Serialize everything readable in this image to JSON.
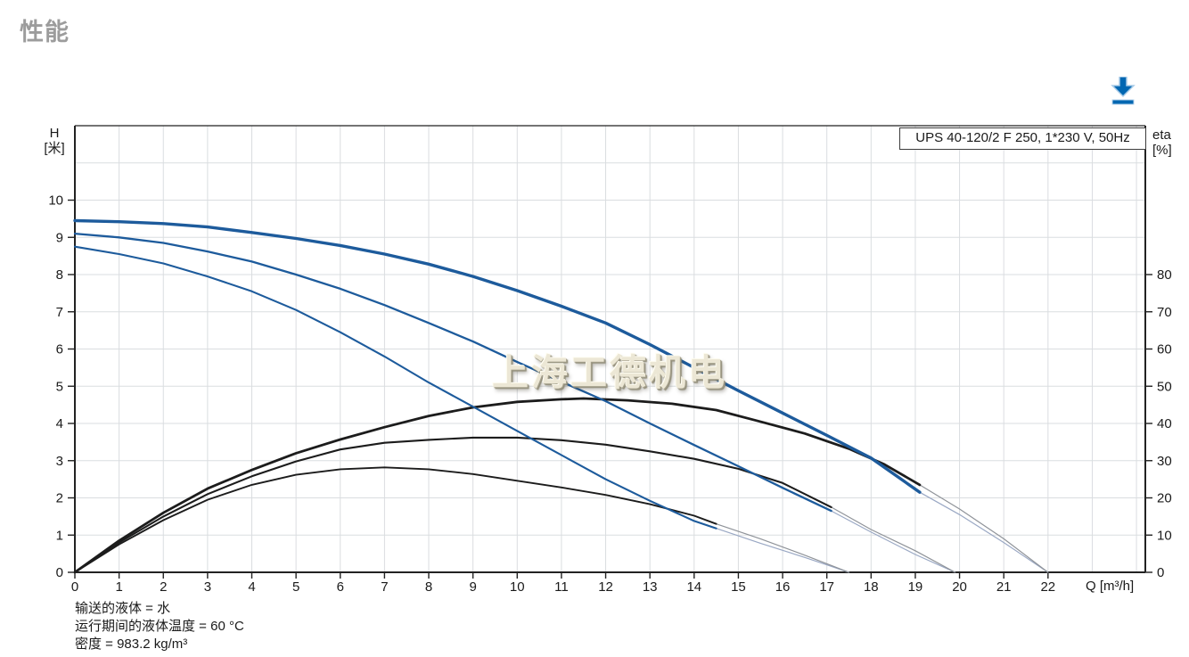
{
  "page": {
    "title": "性能",
    "accent_color": "#0067b2"
  },
  "chart": {
    "legend": "UPS 40-120/2 F 250, 1*230 V, 50Hz",
    "left_axis": {
      "line1": "H",
      "line2": "[米]"
    },
    "right_axis": {
      "line1": "eta",
      "line2": "[%]"
    },
    "x_axis_label": "Q [m³/h]"
  },
  "watermark": "上海工德机电",
  "footnotes": [
    "输送的液体 = 水",
    "运行期间的液体温度 = 60 °C",
    "密度 = 983.2 kg/m³"
  ],
  "chart_data": {
    "type": "line",
    "title": "UPS 40-120/2 F 250, 1*230 V, 50Hz",
    "x_axis": {
      "label": "Q [m³/h]",
      "min": 0,
      "max": 24.2,
      "grid_max": 24,
      "ticks": [
        0,
        1,
        2,
        3,
        4,
        5,
        6,
        7,
        8,
        9,
        10,
        11,
        12,
        13,
        14,
        15,
        16,
        17,
        18,
        19,
        20,
        21,
        22
      ]
    },
    "y_left": {
      "label": "H [米]",
      "min": 0,
      "max": 12,
      "grid_max": 11,
      "ticks": [
        0,
        1,
        2,
        3,
        4,
        5,
        6,
        7,
        8,
        9,
        10
      ]
    },
    "y_right": {
      "label": "eta [%]",
      "min": 0,
      "max": 120,
      "ticks": [
        0,
        10,
        20,
        30,
        40,
        50,
        60,
        70,
        80
      ]
    },
    "layout": {
      "grid": true,
      "grid_color": "#dadde0",
      "axis_color": "#222222",
      "tick_font_size": 15,
      "legend_position": "top-right"
    },
    "series": [
      {
        "name": "speed1-head-extrapolation",
        "axis": "left",
        "color": "#9aa8c4",
        "width": 1.2,
        "points": [
          [
            14.5,
            1.18
          ],
          [
            15.5,
            0.78
          ],
          [
            16.5,
            0.4
          ],
          [
            17.5,
            0
          ]
        ]
      },
      {
        "name": "speed1-eta-extrapolation",
        "axis": "right",
        "color": "#8f9399",
        "width": 1.2,
        "points": [
          [
            14.5,
            13
          ],
          [
            15.5,
            9
          ],
          [
            16.5,
            4.6
          ],
          [
            17.5,
            0
          ]
        ]
      },
      {
        "name": "speed2-head-extrapolation",
        "axis": "left",
        "color": "#9aa8c4",
        "width": 1.2,
        "points": [
          [
            17.1,
            1.65
          ],
          [
            18,
            1.08
          ],
          [
            19,
            0.48
          ],
          [
            19.9,
            0
          ]
        ]
      },
      {
        "name": "speed2-eta-extrapolation",
        "axis": "right",
        "color": "#8f9399",
        "width": 1.2,
        "points": [
          [
            17.1,
            17.5
          ],
          [
            18,
            11.5
          ],
          [
            19,
            5.8
          ],
          [
            19.9,
            0
          ]
        ]
      },
      {
        "name": "speed3-head-extrapolation",
        "axis": "left",
        "color": "#9aa8c4",
        "width": 1.2,
        "points": [
          [
            19.1,
            2.15
          ],
          [
            20,
            1.55
          ],
          [
            21,
            0.8
          ],
          [
            22,
            0
          ]
        ]
      },
      {
        "name": "speed3-eta-extrapolation",
        "axis": "right",
        "color": "#8f9399",
        "width": 1.2,
        "points": [
          [
            19.1,
            23.5
          ],
          [
            20,
            17
          ],
          [
            21,
            9
          ],
          [
            22,
            0
          ]
        ]
      },
      {
        "name": "speed1-eta-curve",
        "axis": "right",
        "color": "#1c1c1c",
        "width": 1.9,
        "points": [
          [
            0,
            0
          ],
          [
            1,
            7.5
          ],
          [
            2,
            14
          ],
          [
            3,
            19.5
          ],
          [
            4,
            23.5
          ],
          [
            5,
            26.2
          ],
          [
            6,
            27.7
          ],
          [
            7,
            28.2
          ],
          [
            8,
            27.7
          ],
          [
            9,
            26.4
          ],
          [
            10,
            24.6
          ],
          [
            11,
            22.8
          ],
          [
            12,
            20.8
          ],
          [
            13,
            18.3
          ],
          [
            14,
            15.2
          ],
          [
            14.5,
            13
          ]
        ]
      },
      {
        "name": "speed2-eta-curve",
        "axis": "right",
        "color": "#1c1c1c",
        "width": 2.1,
        "points": [
          [
            0,
            0
          ],
          [
            1,
            8
          ],
          [
            2,
            15
          ],
          [
            3,
            21
          ],
          [
            4,
            25.8
          ],
          [
            5,
            29.8
          ],
          [
            6,
            33
          ],
          [
            7,
            34.8
          ],
          [
            8,
            35.6
          ],
          [
            9,
            36.2
          ],
          [
            10,
            36.2
          ],
          [
            11,
            35.5
          ],
          [
            12,
            34.3
          ],
          [
            13,
            32.5
          ],
          [
            14,
            30.5
          ],
          [
            15,
            27.8
          ],
          [
            16,
            24
          ],
          [
            17.1,
            17.5
          ]
        ]
      },
      {
        "name": "speed3-eta-curve",
        "axis": "right",
        "color": "#1c1c1c",
        "width": 2.8,
        "points": [
          [
            0,
            0
          ],
          [
            1,
            8.5
          ],
          [
            2,
            16
          ],
          [
            3,
            22.5
          ],
          [
            4,
            27.5
          ],
          [
            5,
            32
          ],
          [
            6,
            35.7
          ],
          [
            7,
            39
          ],
          [
            8,
            42
          ],
          [
            9,
            44.3
          ],
          [
            10,
            45.8
          ],
          [
            11,
            46.5
          ],
          [
            11.5,
            46.7
          ],
          [
            12.5,
            46.2
          ],
          [
            13.5,
            45.3
          ],
          [
            14.5,
            43.6
          ],
          [
            15.4,
            40.8
          ],
          [
            16.5,
            37.3
          ],
          [
            17.5,
            33.2
          ],
          [
            18.3,
            29
          ],
          [
            19.1,
            23.5
          ]
        ]
      },
      {
        "name": "speed1-head-curve",
        "axis": "left",
        "color": "#1d5b9c",
        "width": 2.1,
        "points": [
          [
            0,
            8.75
          ],
          [
            1,
            8.55
          ],
          [
            2,
            8.3
          ],
          [
            3,
            7.95
          ],
          [
            4,
            7.55
          ],
          [
            5,
            7.05
          ],
          [
            6,
            6.45
          ],
          [
            7,
            5.8
          ],
          [
            8,
            5.1
          ],
          [
            9,
            4.45
          ],
          [
            10,
            3.8
          ],
          [
            11,
            3.15
          ],
          [
            12,
            2.5
          ],
          [
            13,
            1.92
          ],
          [
            14,
            1.38
          ],
          [
            14.5,
            1.18
          ]
        ]
      },
      {
        "name": "speed2-head-curve",
        "axis": "left",
        "color": "#1d5b9c",
        "width": 2.3,
        "points": [
          [
            0,
            9.1
          ],
          [
            1,
            9.0
          ],
          [
            2,
            8.85
          ],
          [
            3,
            8.62
          ],
          [
            4,
            8.35
          ],
          [
            5,
            8.0
          ],
          [
            6,
            7.62
          ],
          [
            7,
            7.18
          ],
          [
            8,
            6.7
          ],
          [
            9,
            6.2
          ],
          [
            10,
            5.65
          ],
          [
            11,
            5.12
          ],
          [
            12,
            4.6
          ],
          [
            13,
            4.0
          ],
          [
            14,
            3.42
          ],
          [
            15,
            2.85
          ],
          [
            16,
            2.27
          ],
          [
            17.1,
            1.65
          ]
        ]
      },
      {
        "name": "speed3-head-curve",
        "axis": "left",
        "color": "#1d5b9c",
        "width": 3.4,
        "points": [
          [
            0,
            9.45
          ],
          [
            1,
            9.42
          ],
          [
            2,
            9.37
          ],
          [
            3,
            9.28
          ],
          [
            4,
            9.13
          ],
          [
            5,
            8.97
          ],
          [
            6,
            8.78
          ],
          [
            7,
            8.55
          ],
          [
            8,
            8.28
          ],
          [
            9,
            7.95
          ],
          [
            10,
            7.57
          ],
          [
            11,
            7.15
          ],
          [
            12,
            6.7
          ],
          [
            13,
            6.12
          ],
          [
            14,
            5.5
          ],
          [
            15,
            4.88
          ],
          [
            16,
            4.28
          ],
          [
            17,
            3.68
          ],
          [
            18,
            3.07
          ],
          [
            19.1,
            2.15
          ]
        ]
      }
    ]
  }
}
